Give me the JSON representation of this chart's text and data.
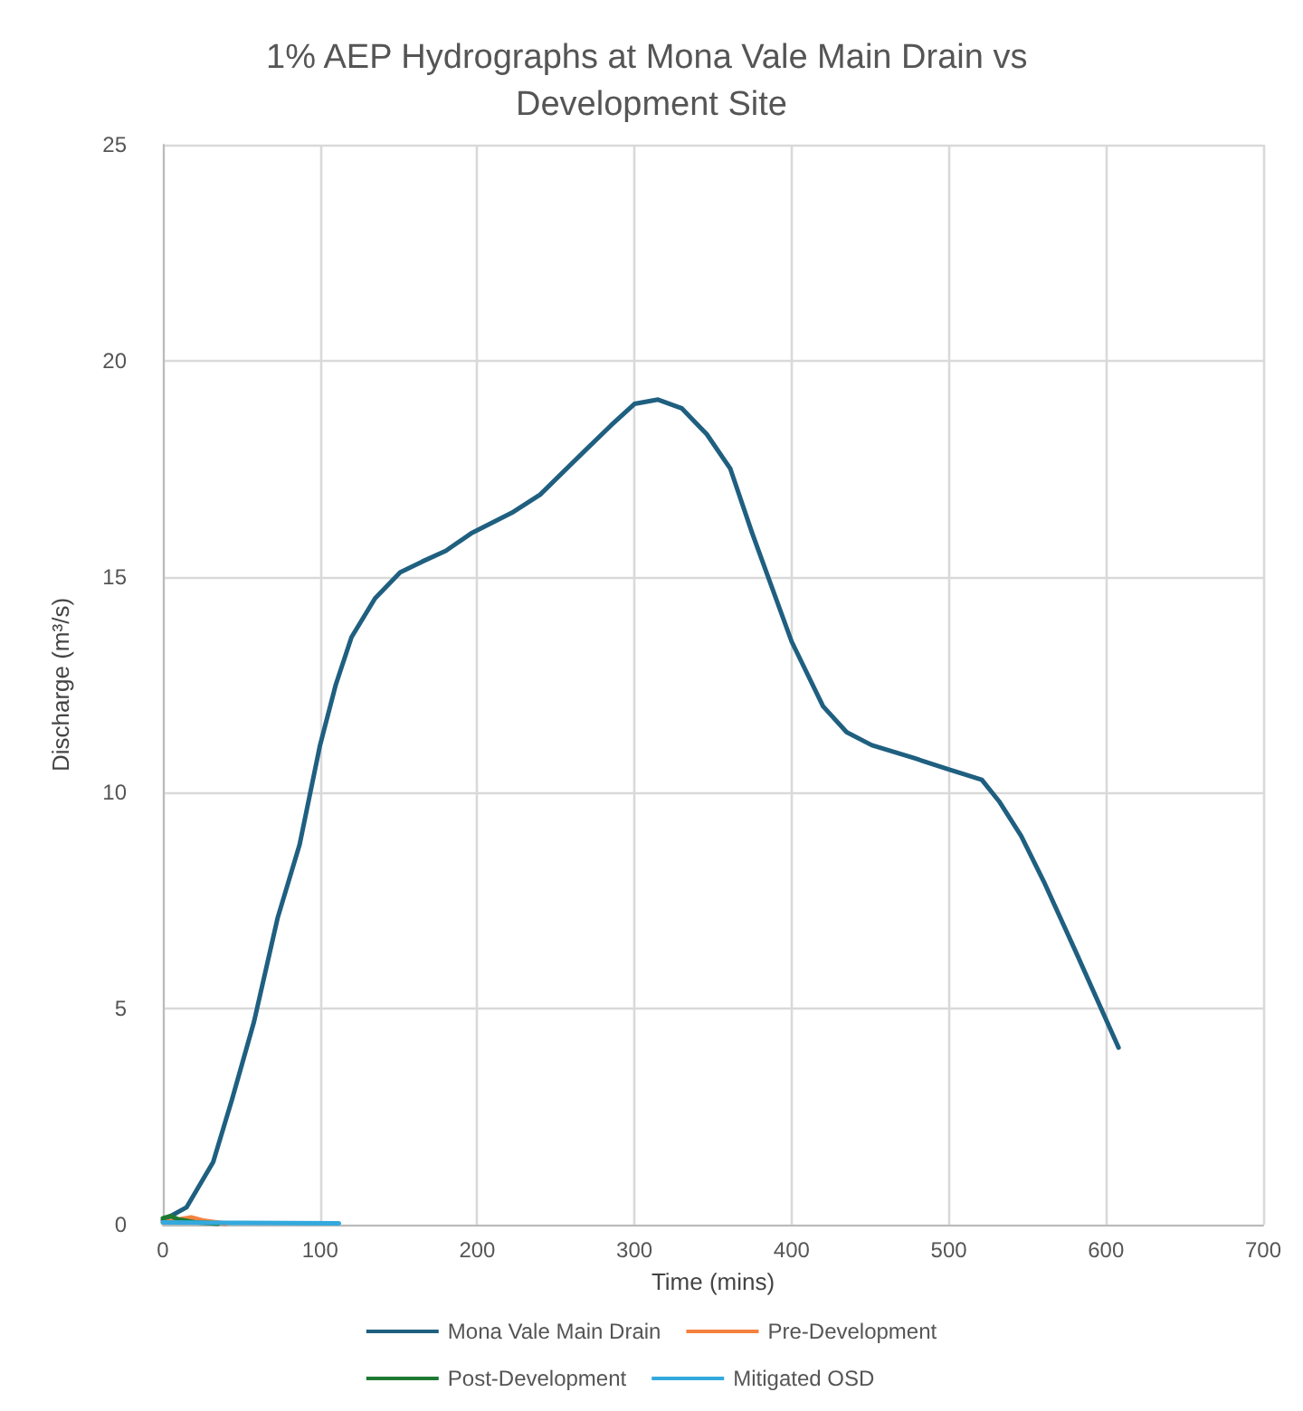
{
  "chart_data": {
    "type": "line",
    "title": "1% AEP Hydrographs at Mona Vale Main Drain vs Development Site",
    "xlabel": "Time (mins)",
    "ylabel": "Discharge (m³/s)",
    "xlim": [
      0,
      700
    ],
    "xticks": [
      0,
      100,
      200,
      300,
      400,
      500,
      600,
      700
    ],
    "ylim": [
      0,
      25
    ],
    "yticks": [
      0,
      5,
      10,
      15,
      20,
      25
    ],
    "grid": true,
    "legend": "bottom",
    "marker": "none",
    "line_style": "solid",
    "series": [
      {
        "name": "Mona Vale Main Drain",
        "color": "#1f5f80",
        "x": [
          0,
          15,
          32,
          44,
          58,
          73,
          87,
          100,
          110,
          120,
          135,
          151,
          165,
          180,
          196,
          223,
          240,
          268,
          285,
          300,
          315,
          330,
          346,
          361,
          375,
          400,
          420,
          435,
          451,
          478,
          499,
          521,
          532,
          546,
          561,
          581,
          608
        ],
        "values": [
          0.1,
          0.4,
          1.45,
          2.9,
          4.7,
          7.1,
          8.8,
          11.1,
          12.5,
          13.6,
          14.5,
          15.1,
          15.35,
          15.6,
          16.0,
          16.5,
          16.9,
          17.9,
          18.5,
          19.0,
          19.1,
          18.9,
          18.3,
          17.5,
          16.0,
          13.5,
          12.0,
          11.4,
          11.1,
          10.8,
          10.55,
          10.3,
          9.8,
          9.0,
          7.9,
          6.3,
          4.1
        ]
      },
      {
        "name": "Pre-Development",
        "color": "#f4813f",
        "x": [
          0,
          10,
          18,
          25,
          40
        ],
        "values": [
          0.05,
          0.12,
          0.17,
          0.1,
          0.02
        ]
      },
      {
        "name": "Post-Development",
        "color": "#1e7a32",
        "x": [
          0,
          5,
          10,
          20,
          35
        ],
        "values": [
          0.15,
          0.2,
          0.12,
          0.06,
          0.02
        ]
      },
      {
        "name": "Mitigated OSD",
        "color": "#33a9dd",
        "x": [
          0,
          50,
          112
        ],
        "values": [
          0.05,
          0.04,
          0.03
        ]
      }
    ]
  }
}
